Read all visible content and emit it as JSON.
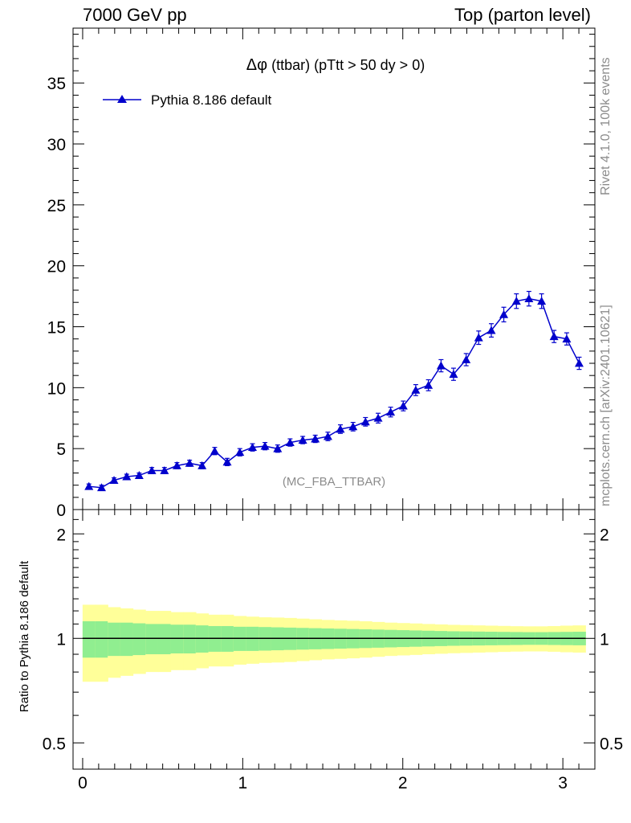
{
  "header": {
    "left": "7000 GeV pp",
    "right": "Top (parton level)"
  },
  "sidebar": {
    "rivet": "Rivet 4.1.0,  100k events",
    "mcplots": "mcplots.cern.ch [arXiv:2401.10621]"
  },
  "chart_data": {
    "type": "line",
    "title_symbol": "Δφ",
    "title_rest": " (ttbar) (pTtt > 50 dy > 0)",
    "watermark": "(MC_FBA_TTBAR)",
    "legend": "Pythia 8.186 default",
    "series_color": "#0000cc",
    "main": {
      "xlim": [
        -0.06,
        3.2
      ],
      "ylim": [
        0,
        39.5
      ],
      "yticks": [
        0,
        5,
        10,
        15,
        20,
        25,
        30,
        35
      ],
      "ytick_labels": [
        "0",
        "5",
        "10",
        "15",
        "20",
        "25",
        "30",
        "35"
      ]
    },
    "ratio": {
      "ylabel": "Ratio to Pythia 8.186 default",
      "ylim_log": [
        0.42,
        2.35
      ],
      "yticks": [
        0.5,
        1,
        2
      ],
      "ytick_labels": [
        "0.5",
        "1",
        "2"
      ],
      "xticks": [
        0,
        1,
        2,
        3
      ],
      "xtick_labels": [
        "0",
        "1",
        "2",
        "3"
      ],
      "band_colors": {
        "inner": "#90ee90",
        "outer": "#ffff99"
      }
    },
    "x": [
      0.039,
      0.118,
      0.196,
      0.275,
      0.353,
      0.432,
      0.511,
      0.589,
      0.668,
      0.746,
      0.825,
      0.903,
      0.982,
      1.061,
      1.139,
      1.218,
      1.296,
      1.375,
      1.453,
      1.532,
      1.61,
      1.689,
      1.767,
      1.846,
      1.924,
      2.003,
      2.081,
      2.16,
      2.239,
      2.317,
      2.396,
      2.474,
      2.553,
      2.631,
      2.71,
      2.788,
      2.867,
      2.945,
      3.024,
      3.102
    ],
    "y": [
      1.9,
      1.8,
      2.4,
      2.7,
      2.8,
      3.2,
      3.2,
      3.6,
      3.8,
      3.6,
      4.8,
      3.9,
      4.7,
      5.1,
      5.2,
      5.0,
      5.5,
      5.7,
      5.8,
      6.0,
      6.6,
      6.8,
      7.2,
      7.5,
      8.0,
      8.5,
      9.8,
      10.2,
      11.8,
      11.1,
      12.3,
      14.1,
      14.7,
      16.0,
      17.1,
      17.3,
      17.1,
      14.2,
      14.0,
      12.0
    ],
    "yerr": [
      0.2,
      0.2,
      0.2,
      0.2,
      0.2,
      0.25,
      0.25,
      0.25,
      0.25,
      0.25,
      0.3,
      0.3,
      0.3,
      0.3,
      0.3,
      0.3,
      0.3,
      0.3,
      0.3,
      0.35,
      0.35,
      0.35,
      0.35,
      0.4,
      0.4,
      0.4,
      0.45,
      0.45,
      0.5,
      0.5,
      0.5,
      0.55,
      0.55,
      0.6,
      0.6,
      0.6,
      0.6,
      0.5,
      0.5,
      0.5
    ],
    "ratio_band_inner": [
      0.12,
      0.12,
      0.11,
      0.11,
      0.105,
      0.1,
      0.1,
      0.095,
      0.095,
      0.09,
      0.085,
      0.085,
      0.08,
      0.08,
      0.078,
      0.076,
      0.074,
      0.072,
      0.07,
      0.068,
      0.066,
      0.064,
      0.062,
      0.06,
      0.058,
      0.056,
      0.054,
      0.052,
      0.05,
      0.048,
      0.047,
      0.046,
      0.045,
      0.044,
      0.043,
      0.042,
      0.042,
      0.043,
      0.044,
      0.045
    ],
    "ratio_band_outer": [
      0.25,
      0.25,
      0.23,
      0.22,
      0.21,
      0.2,
      0.2,
      0.19,
      0.19,
      0.18,
      0.17,
      0.17,
      0.16,
      0.155,
      0.15,
      0.148,
      0.145,
      0.14,
      0.135,
      0.13,
      0.127,
      0.124,
      0.12,
      0.115,
      0.11,
      0.107,
      0.104,
      0.1,
      0.097,
      0.094,
      0.092,
      0.09,
      0.088,
      0.086,
      0.084,
      0.083,
      0.083,
      0.085,
      0.088,
      0.09
    ]
  }
}
